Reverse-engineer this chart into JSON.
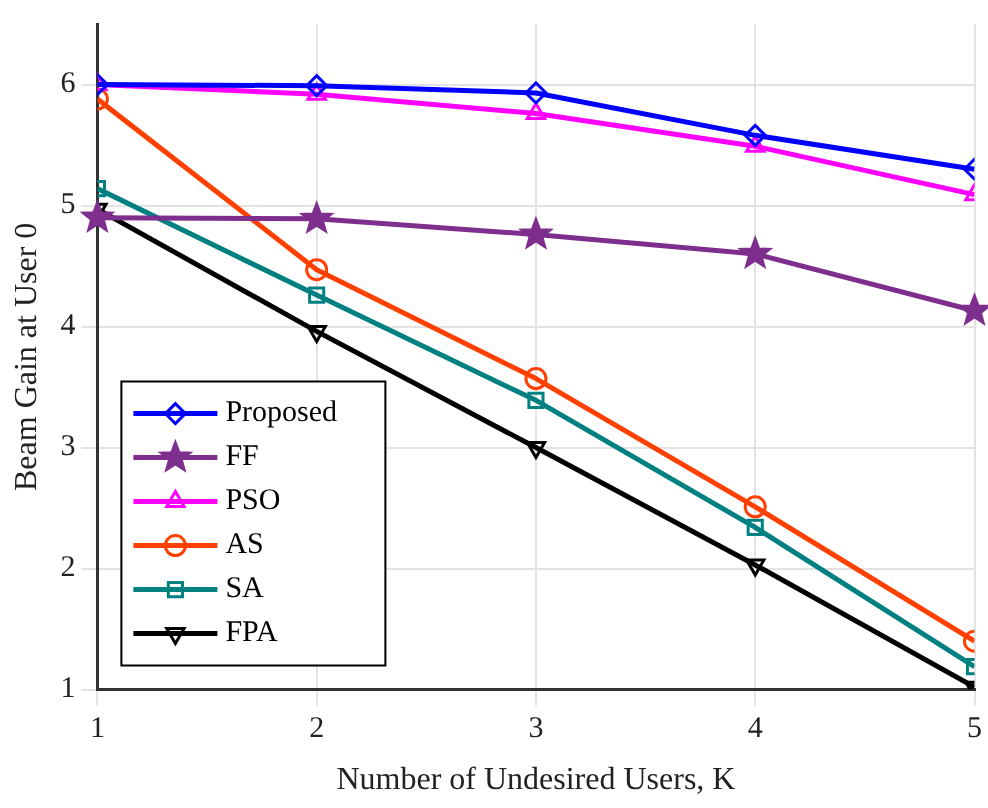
{
  "chart_data": {
    "type": "line",
    "xlabel": "Number of Undesired Users, K",
    "ylabel": "Beam Gain at User 0",
    "x": [
      1,
      2,
      3,
      4,
      5
    ],
    "xlim": [
      1,
      5
    ],
    "xticks": [
      1,
      2,
      3,
      4,
      5
    ],
    "ylim": [
      1,
      6.5
    ],
    "yticks": [
      1,
      2,
      3,
      4,
      5,
      6
    ],
    "grid": true,
    "legend": "bottom left",
    "series": [
      {
        "name": "Proposed",
        "color": "#0000ff",
        "marker": "diamond",
        "values": [
          6.0,
          5.99,
          5.93,
          5.58,
          5.3
        ]
      },
      {
        "name": "FF",
        "color": "#7e2f8e",
        "marker": "star",
        "values": [
          4.9,
          4.89,
          4.76,
          4.6,
          4.13
        ]
      },
      {
        "name": "PSO",
        "color": "#ff00ff",
        "marker": "triangle",
        "values": [
          6.0,
          5.92,
          5.76,
          5.49,
          5.09
        ]
      },
      {
        "name": "AS",
        "color": "#ff4000",
        "marker": "circle",
        "values": [
          5.88,
          4.47,
          3.57,
          2.51,
          1.4
        ]
      },
      {
        "name": "SA",
        "color": "#008080",
        "marker": "square",
        "values": [
          5.14,
          4.26,
          3.39,
          2.34,
          1.19
        ]
      },
      {
        "name": "FPA",
        "color": "#000000",
        "marker": "triangle_down",
        "values": [
          4.97,
          3.96,
          3.0,
          2.03,
          1.02
        ]
      }
    ]
  }
}
